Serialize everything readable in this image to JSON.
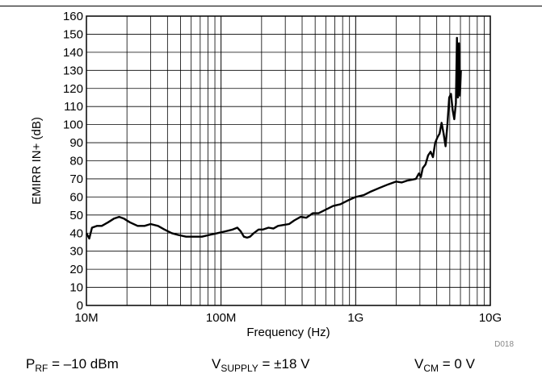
{
  "conditions": {
    "prf": {
      "symbol": "P",
      "sub": "RF",
      "value": " = –10 dBm"
    },
    "vsupply": {
      "symbol": "V",
      "sub": "SUPPLY",
      "value": " = ±18 V"
    },
    "vcm": {
      "symbol": "V",
      "sub": "CM",
      "value": " = 0 V"
    }
  },
  "figure_id": "D018",
  "chart_data": {
    "type": "line",
    "title": "",
    "xlabel": "Frequency (Hz)",
    "ylabel": "EMIRR IN+ (dB)",
    "xscale": "log",
    "xlim": [
      10000000,
      10000000000
    ],
    "ylim": [
      0,
      160
    ],
    "grid": true,
    "legend": "none",
    "x_ticks": [
      10000000,
      100000000,
      1000000000,
      10000000000
    ],
    "x_tick_labels": [
      "10M",
      "100M",
      "1G",
      "10G"
    ],
    "y_ticks": [
      0,
      10,
      20,
      30,
      40,
      50,
      60,
      70,
      80,
      90,
      100,
      110,
      120,
      130,
      140,
      150,
      160
    ],
    "y_tick_labels": [
      "0",
      "10",
      "20",
      "30",
      "40",
      "50",
      "60",
      "70",
      "80",
      "90",
      "100",
      "110",
      "120",
      "130",
      "140",
      "150",
      "160"
    ],
    "series": [
      {
        "line_color": "#000000",
        "x": [
          10000000,
          10500000,
          11000000,
          12000000,
          13000000,
          14500000,
          16000000,
          17500000,
          19000000,
          21000000,
          24000000,
          27000000,
          30000000,
          34000000,
          38000000,
          43000000,
          48000000,
          55000000,
          63000000,
          72000000,
          82000000,
          94000000,
          108000000,
          122000000,
          132000000,
          140000000,
          148000000,
          156000000,
          164000000,
          175000000,
          190000000,
          205000000,
          225000000,
          245000000,
          265000000,
          290000000,
          320000000,
          350000000,
          390000000,
          430000000,
          480000000,
          530000000,
          600000000,
          680000000,
          770000000,
          870000000,
          1000000000,
          1150000000,
          1300000000,
          1500000000,
          1750000000,
          2000000000,
          2200000000,
          2400000000,
          2600000000,
          2800000000,
          2950000000,
          3050000000,
          3150000000,
          3300000000,
          3450000000,
          3600000000,
          3750000000,
          3900000000,
          4050000000,
          4200000000,
          4350000000,
          4500000000,
          4650000000,
          4800000000,
          4950000000,
          5100000000,
          5250000000,
          5400000000,
          5550000000,
          5650000000,
          5750000000,
          5850000000,
          5950000000,
          6050000000
        ],
        "y": [
          40,
          37,
          43,
          44,
          44,
          46,
          48,
          49,
          48,
          46,
          44,
          44,
          45,
          44,
          42,
          40,
          39,
          38,
          38,
          38,
          39,
          40,
          41,
          42,
          43,
          41,
          38,
          37.5,
          38,
          40,
          42,
          42,
          43,
          42.5,
          44,
          44.5,
          45,
          47,
          49,
          48.5,
          51,
          51,
          53,
          55,
          56,
          58,
          60,
          61,
          63,
          65,
          67,
          68.5,
          68,
          69,
          69.5,
          70,
          73,
          71,
          76,
          78,
          83,
          85,
          82,
          90,
          93,
          95,
          101,
          95,
          88,
          100,
          115,
          117,
          108,
          103,
          112,
          148,
          115,
          145,
          116,
          130
        ]
      }
    ]
  }
}
